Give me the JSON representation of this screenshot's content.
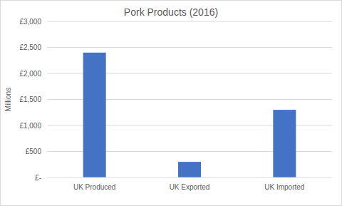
{
  "chart_data": {
    "type": "bar",
    "title": "Pork Products (2016)",
    "y_label": "Millions",
    "categories": [
      "UK Produced",
      "UK Exported",
      "UK Imported"
    ],
    "values": [
      2400,
      300,
      1300
    ],
    "color": "#4472c4",
    "ylim": [
      0,
      3000
    ],
    "yticks": [
      {
        "value": 0,
        "label": "£-"
      },
      {
        "value": 500,
        "label": "£500"
      },
      {
        "value": 1000,
        "label": "£1,000"
      },
      {
        "value": 1500,
        "label": "£1,500"
      },
      {
        "value": 2000,
        "label": "£2,000"
      },
      {
        "value": 2500,
        "label": "£2,500"
      },
      {
        "value": 3000,
        "label": "£3,000"
      }
    ],
    "grid": true
  }
}
